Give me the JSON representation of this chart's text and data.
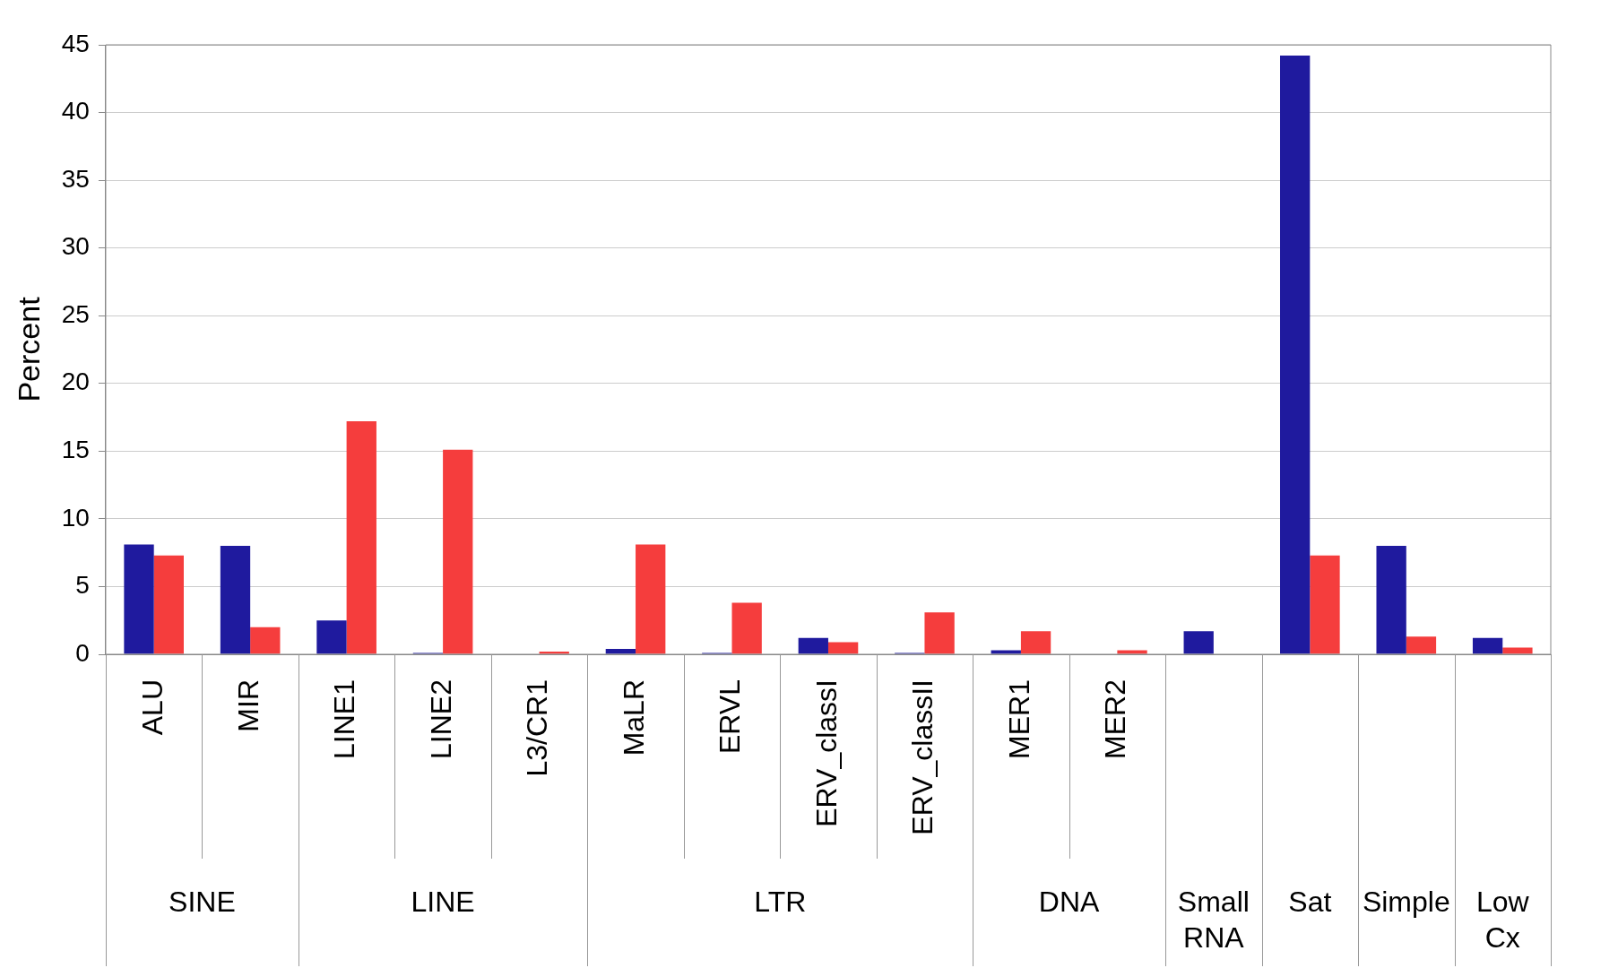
{
  "chart_data": {
    "type": "bar",
    "ylabel": "Percent",
    "categories": [
      "ALU",
      "MIR",
      "LINE1",
      "LINE2",
      "L3/CR1",
      "MaLR",
      "ERVL",
      "ERV_classI",
      "ERV_classII",
      "MER1",
      "MER2",
      null,
      null,
      null,
      null
    ],
    "series": [
      {
        "color": "#1f1a9e",
        "values": [
          8.1,
          8.0,
          2.5,
          0.1,
          0,
          0.4,
          0.1,
          1.2,
          0.1,
          0.3,
          0,
          1.7,
          44.2,
          8.0,
          1.2
        ]
      },
      {
        "color": "#f53d3d",
        "values": [
          7.3,
          2.0,
          17.2,
          15.1,
          0.2,
          8.1,
          3.8,
          0.9,
          3.1,
          1.7,
          0.3,
          0,
          7.3,
          1.3,
          0.5
        ]
      }
    ],
    "ylim": [
      0,
      45
    ],
    "yticks": [
      0,
      5,
      10,
      15,
      20,
      25,
      30,
      35,
      40,
      45
    ],
    "grid": "y",
    "legend": false,
    "annotations": [
      "SINE",
      "LINE",
      "LTR",
      "DNA",
      "Small RNA",
      "Sat",
      "Simple",
      "Low Cx"
    ]
  }
}
